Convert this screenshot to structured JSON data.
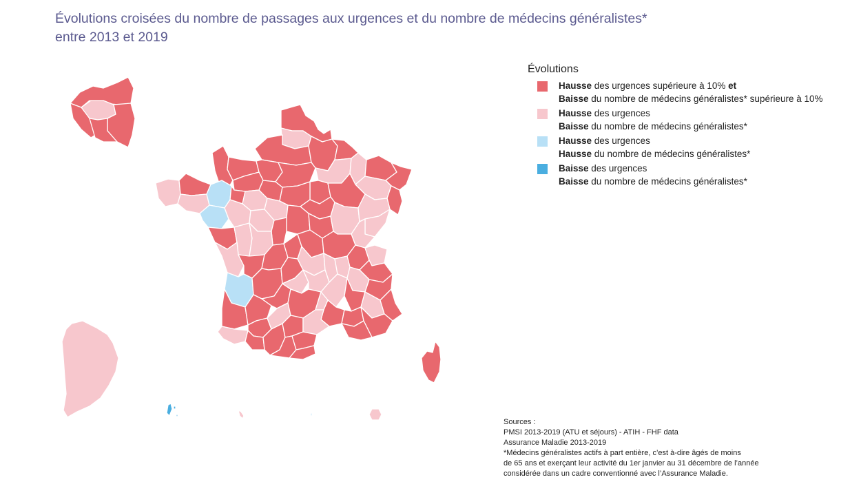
{
  "title": {
    "line1": "Évolutions croisées du nombre de passages aux urgences et du nombre de médecins généralistes*",
    "line2": "entre 2013 et 2019"
  },
  "colors": {
    "red": "#e8686e",
    "pink": "#f7c7cd",
    "light_blue": "#b8e0f6",
    "blue": "#4aaee0"
  },
  "legend": {
    "title": "Évolutions",
    "items": [
      {
        "color": "#e8686e",
        "line1_bold": "Hausse",
        "line1_rest": " des urgences supérieure à 10% ",
        "line1_bold2": "et",
        "line2_bold": "Baisse",
        "line2_rest": " du nombre de médecins généralistes* supérieure à 10%"
      },
      {
        "color": "#f7c7cd",
        "line1_bold": "Hausse",
        "line1_rest": " des urgences",
        "line2_bold": "Baisse",
        "line2_rest": " du nombre de médecins généralistes*"
      },
      {
        "color": "#b8e0f6",
        "line1_bold": "Hausse",
        "line1_rest": " des urgences",
        "line2_bold": "Hausse",
        "line2_rest": " du nombre de médecins généralistes*"
      },
      {
        "color": "#4aaee0",
        "line1_bold": "Baisse",
        "line1_rest": " des urgences",
        "line2_bold": "Baisse",
        "line2_rest": " du nombre de médecins généralistes*"
      }
    ]
  },
  "sources": {
    "line1": "Sources :",
    "line2": "PMSI 2013-2019 (ATU et séjours) - ATIH - FHF data",
    "line3": "Assurance Maladie 2013-2019",
    "line4": " *Médecins généralistes actifs à part entière, c’est à-dire âgés de moins",
    "line5": "de 65 ans et exerçant leur activité du 1er janvier au 31 décembre de l’année",
    "line6": "considérée dans un cadre conventionné avec l’Assurance Maladie."
  }
}
